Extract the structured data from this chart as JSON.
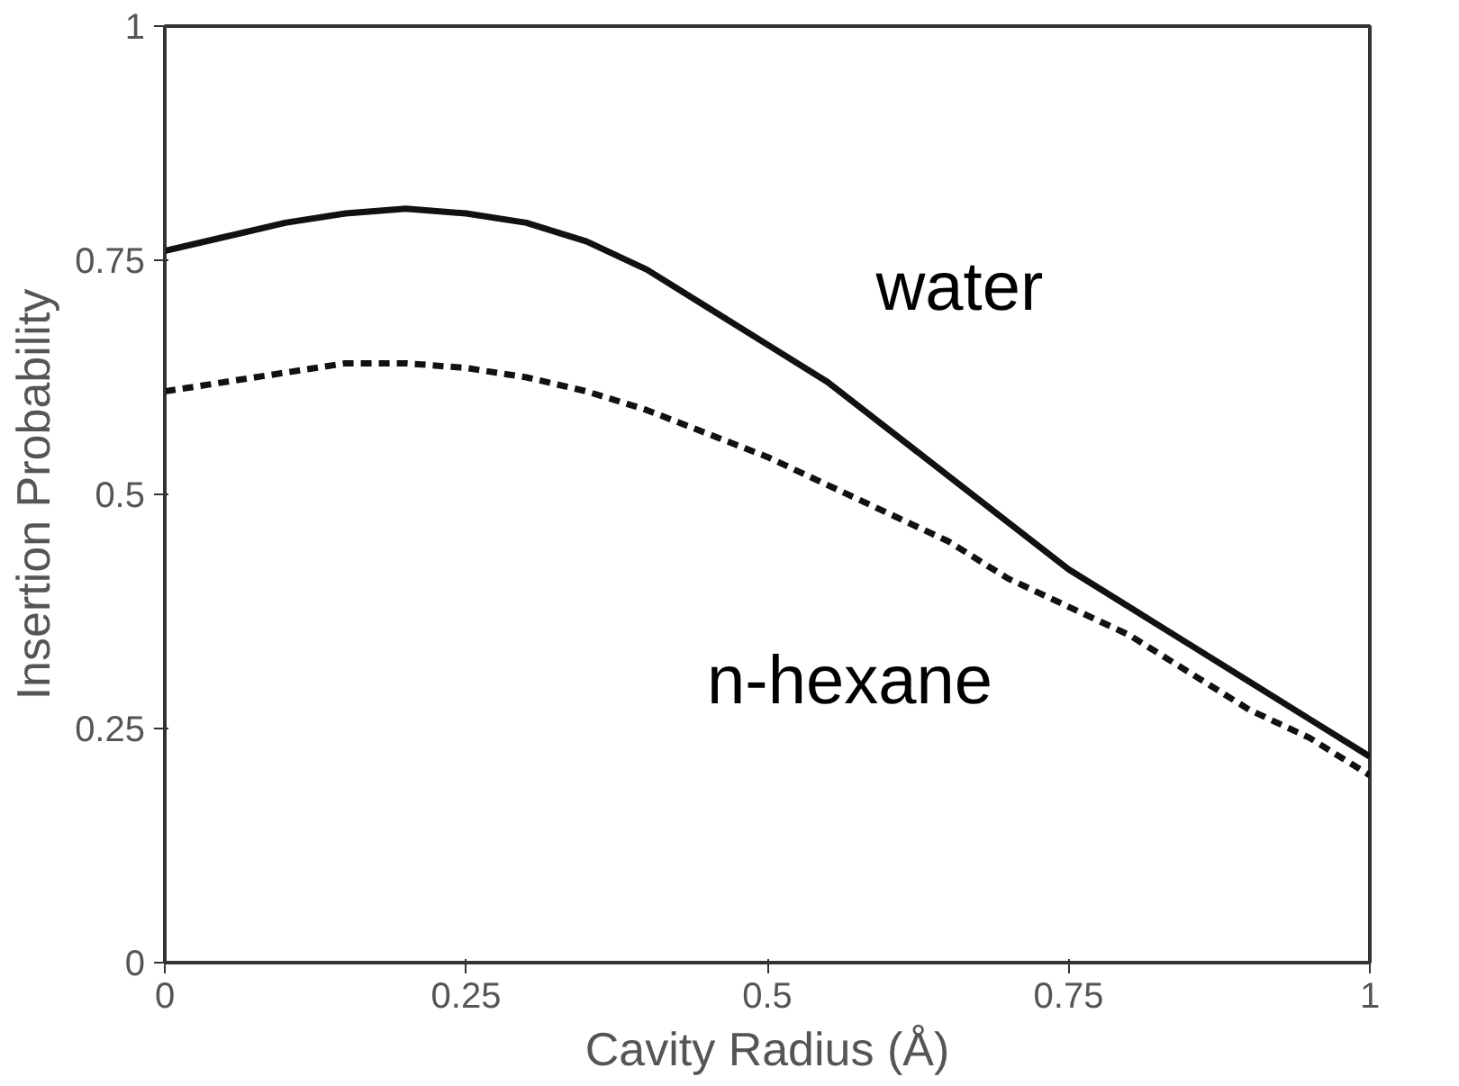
{
  "chart_data": {
    "type": "line",
    "xlabel": "Cavity Radius (Å)",
    "ylabel": "Insertion Probability",
    "x": [
      0,
      0.05,
      0.1,
      0.15,
      0.2,
      0.25,
      0.3,
      0.35,
      0.4,
      0.45,
      0.5,
      0.55,
      0.6,
      0.65,
      0.7,
      0.75,
      0.8,
      0.85,
      0.9,
      0.95,
      1
    ],
    "series": [
      {
        "name": "water",
        "color": "#111111",
        "line_style": "solid",
        "values": [
          0.76,
          0.775,
          0.79,
          0.8,
          0.805,
          0.8,
          0.79,
          0.77,
          0.74,
          0.7,
          0.66,
          0.62,
          0.57,
          0.52,
          0.47,
          0.42,
          0.38,
          0.34,
          0.3,
          0.26,
          0.22
        ]
      },
      {
        "name": "n-hexane",
        "color": "#111111",
        "line_style": "dashed",
        "values": [
          0.61,
          0.62,
          0.63,
          0.64,
          0.64,
          0.635,
          0.625,
          0.61,
          0.59,
          0.565,
          0.54,
          0.51,
          0.48,
          0.45,
          0.41,
          0.38,
          0.35,
          0.31,
          0.27,
          0.24,
          0.2
        ]
      }
    ],
    "xlim": [
      0,
      1
    ],
    "ylim": [
      0,
      1
    ],
    "xticks": [
      0,
      0.25,
      0.5,
      0.75,
      1
    ],
    "yticks": [
      0,
      0.25,
      0.5,
      0.75,
      1
    ],
    "grid": false
  }
}
